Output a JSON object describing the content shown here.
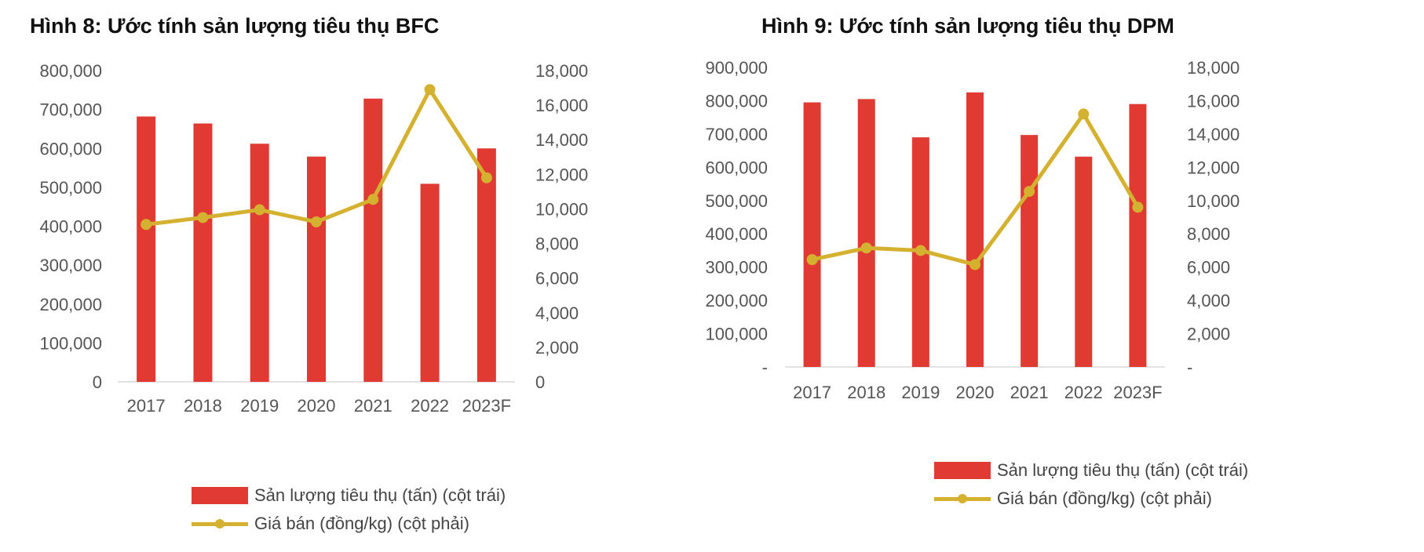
{
  "chart_data": [
    {
      "type": "bar",
      "title": "Hình 8: Ước tính sản lượng tiêu thụ BFC",
      "categories": [
        "2017",
        "2018",
        "2019",
        "2020",
        "2021",
        "2022",
        "2023F"
      ],
      "series": [
        {
          "name": "Sản lượng tiêu thụ (tấn) (cột trái)",
          "type": "bar",
          "axis": "left",
          "color": "#e03a32",
          "values": [
            682000,
            664000,
            612000,
            579000,
            728000,
            509000,
            600000
          ]
        },
        {
          "name": "Giá bán (đồng/kg) (cột phải)",
          "type": "line",
          "axis": "right",
          "color": "#d4b12f",
          "values": [
            9100,
            9500,
            9950,
            9250,
            10550,
            16900,
            11800
          ]
        }
      ],
      "left_axis": {
        "ylim": [
          0,
          800000
        ],
        "ticks": [
          "0",
          "100,000",
          "200,000",
          "300,000",
          "400,000",
          "500,000",
          "600,000",
          "700,000",
          "800,000"
        ]
      },
      "right_axis": {
        "ylim": [
          0,
          18000
        ],
        "ticks": [
          "0",
          "2,000",
          "4,000",
          "6,000",
          "8,000",
          "10,000",
          "12,000",
          "14,000",
          "16,000",
          "18,000"
        ]
      },
      "legend": [
        "Sản lượng tiêu thụ (tấn) (cột trái)",
        "Giá bán (đồng/kg) (cột phải)"
      ],
      "legend_position": "bottom"
    },
    {
      "type": "bar",
      "title": "Hình 9: Ước tính sản lượng tiêu thụ DPM",
      "categories": [
        "2017",
        "2018",
        "2019",
        "2020",
        "2021",
        "2022",
        "2023F"
      ],
      "series": [
        {
          "name": "Sản lượng tiêu thụ (tấn) (cột trái)",
          "type": "bar",
          "axis": "left",
          "color": "#e03a32",
          "values": [
            795000,
            805000,
            690000,
            825000,
            697000,
            632000,
            790000
          ]
        },
        {
          "name": "Giá bán (đồng/kg) (cột phải)",
          "type": "line",
          "axis": "right",
          "color": "#d4b12f",
          "values": [
            6450,
            7150,
            7000,
            6150,
            10550,
            15200,
            9600
          ]
        }
      ],
      "left_axis": {
        "ylim": [
          0,
          900000
        ],
        "ticks": [
          "-",
          "100,000",
          "200,000",
          "300,000",
          "400,000",
          "500,000",
          "600,000",
          "700,000",
          "800,000",
          "900,000"
        ]
      },
      "right_axis": {
        "ylim": [
          0,
          18000
        ],
        "ticks": [
          "-",
          "2,000",
          "4,000",
          "6,000",
          "8,000",
          "10,000",
          "12,000",
          "14,000",
          "16,000",
          "18,000"
        ]
      },
      "legend": [
        "Sản lượng tiêu thụ (tấn) (cột trái)",
        "Giá bán (đồng/kg) (cột phải)"
      ],
      "legend_position": "bottom"
    }
  ]
}
